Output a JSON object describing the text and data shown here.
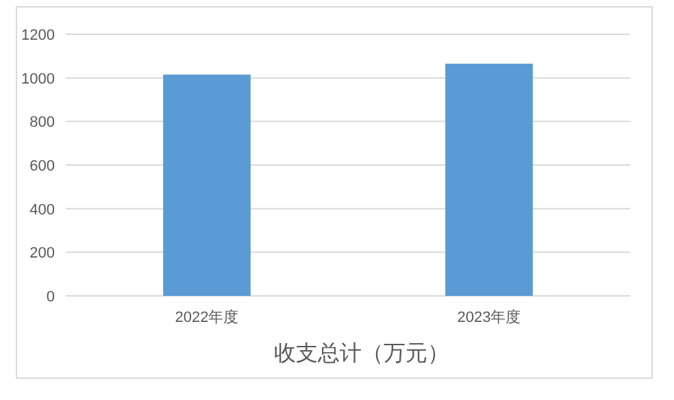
{
  "chart_data": {
    "type": "bar",
    "title": "收支总计（万元）",
    "categories": [
      "2022年度",
      "2023年度"
    ],
    "values": [
      1015,
      1065
    ],
    "color": "#5b9bd5",
    "ylim": [
      0,
      1200
    ],
    "yticks": [
      0,
      200,
      400,
      600,
      800,
      1000,
      1200
    ],
    "grid": "y"
  }
}
